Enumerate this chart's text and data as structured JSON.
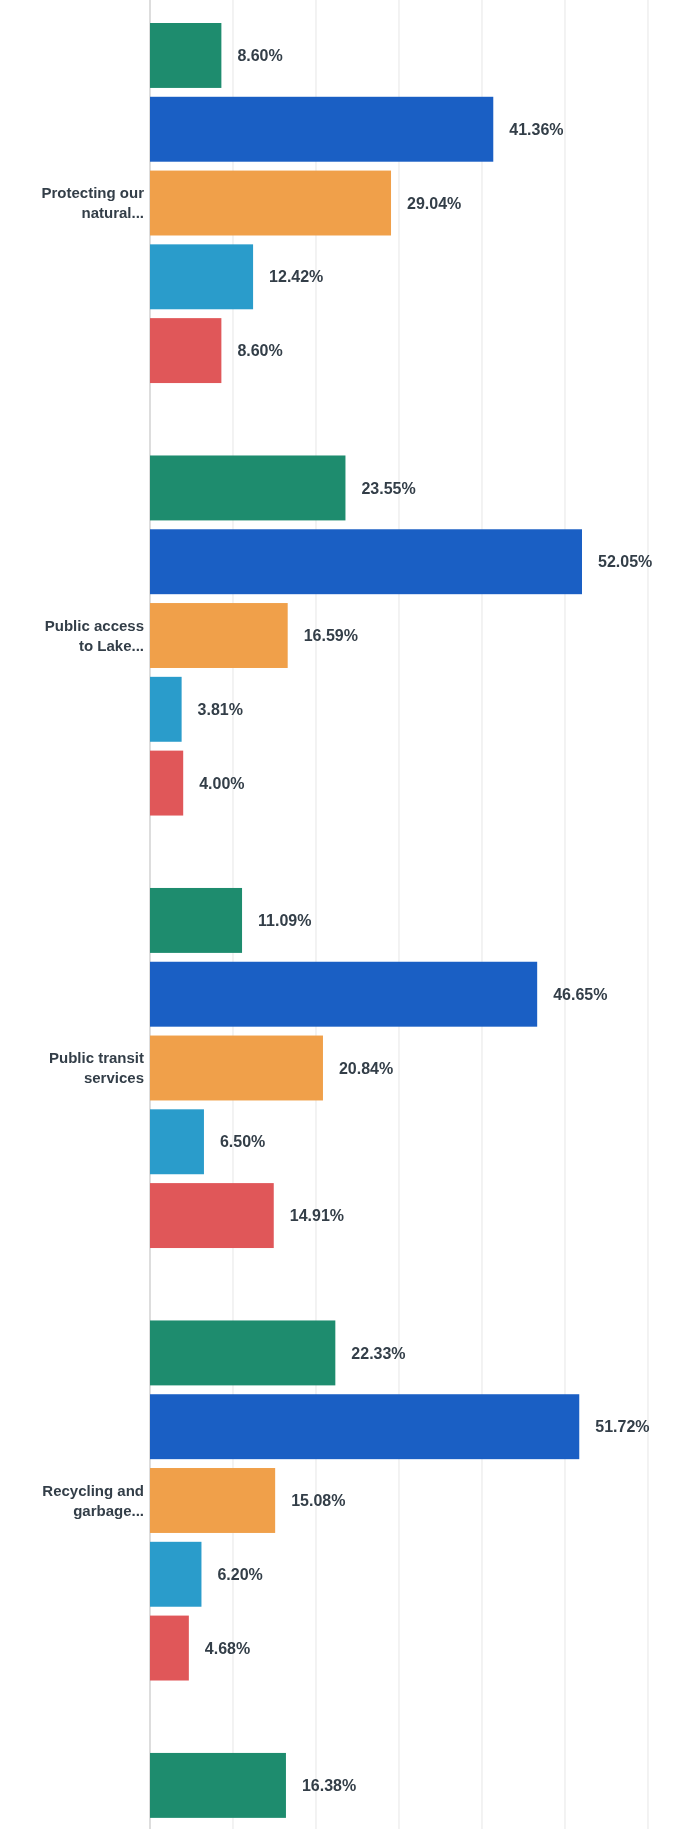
{
  "chart_data": {
    "type": "bar",
    "orientation": "horizontal",
    "categories": [
      "Protecting our natural...",
      "Public access to Lake...",
      "Public transit services",
      "Recycling and garbage...",
      null
    ],
    "series": [
      {
        "color": "#1e8c6e",
        "values": [
          8.6,
          23.55,
          11.09,
          22.33,
          16.38
        ],
        "value_labels": [
          "8.60%",
          "23.55%",
          "11.09%",
          "22.33%",
          "16.38%"
        ]
      },
      {
        "color": "#1a5fc4",
        "values": [
          41.36,
          52.05,
          46.65,
          51.72,
          null
        ],
        "value_labels": [
          "41.36%",
          "52.05%",
          "46.65%",
          "51.72%",
          null
        ]
      },
      {
        "color": "#f0a04a",
        "values": [
          29.04,
          16.59,
          20.84,
          15.08,
          null
        ],
        "value_labels": [
          "29.04%",
          "16.59%",
          "20.84%",
          "15.08%",
          null
        ]
      },
      {
        "color": "#2a9ccb",
        "values": [
          12.42,
          3.81,
          6.5,
          6.2,
          null
        ],
        "value_labels": [
          "12.42%",
          "3.81%",
          "6.50%",
          "6.20%",
          null
        ]
      },
      {
        "color": "#e05759",
        "values": [
          8.6,
          4.0,
          14.91,
          4.68,
          null
        ],
        "value_labels": [
          "8.60%",
          "4.00%",
          "14.91%",
          "4.68%",
          null
        ]
      }
    ],
    "grid": "x"
  }
}
